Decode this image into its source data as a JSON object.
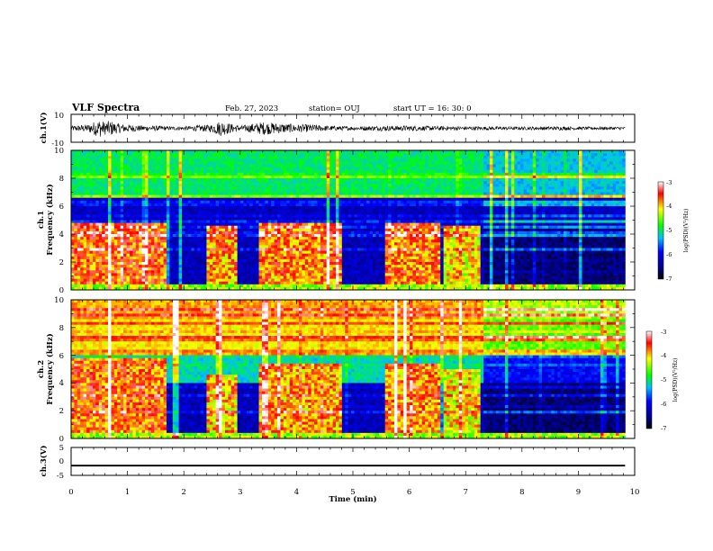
{
  "header": {
    "title": "VLF Spectra",
    "date": "Feb. 27, 2023",
    "station": "station= OUJ",
    "start": "start  UT =   16: 30: 0"
  },
  "chart_data": [
    {
      "type": "line",
      "title": "",
      "xlabel": "",
      "ylabel": "ch.1(V)",
      "xlim": [
        0,
        10
      ],
      "ylim": [
        -10,
        10
      ],
      "y_ticks": [
        "10",
        "-10"
      ],
      "series": [
        {
          "x": [
            0,
            0.3,
            0.5,
            0.6,
            0.7,
            0.8,
            1.0,
            1.3,
            1.5,
            1.7,
            2.0,
            2.5,
            2.65,
            2.8,
            3.0,
            3.4,
            3.7,
            4.0,
            4.3,
            4.5,
            5.0,
            5.5,
            6.0,
            7.0,
            8.0,
            8.7,
            9.0,
            9.83
          ],
          "envelope": [
            2,
            3,
            7,
            5,
            6,
            4,
            3,
            2,
            2,
            1.5,
            1.5,
            3,
            6,
            4,
            2,
            5,
            4,
            3,
            3,
            2,
            1.5,
            2,
            2,
            1.5,
            1.2,
            1.5,
            1.2,
            1.2
          ]
        }
      ]
    },
    {
      "type": "heatmap",
      "title": "",
      "xlabel": "",
      "ylabel_line1": "ch.1",
      "ylabel_line2": "Frequency (kHz)",
      "xlim": [
        0,
        10
      ],
      "ylim": [
        0,
        10
      ],
      "y_ticks": [
        "0",
        "2",
        "4",
        "6",
        "8",
        "10"
      ],
      "data_end_min": 9.83,
      "colorbar": {
        "label": "log(PSD)(V²/Hz)",
        "range": [
          -7,
          -3
        ],
        "ticks": [
          "-3",
          "-4",
          "-5",
          "-6",
          "-7"
        ],
        "colors": [
          "#000000",
          "#00008b",
          "#0000ff",
          "#00bfff",
          "#00ff00",
          "#ffff00",
          "#ff0000",
          "#ffffff"
        ]
      },
      "background_upper_kHz": 6.5,
      "background_lower_kHz": 4.8,
      "bursts": [
        {
          "t0": 0.0,
          "t1": 1.72,
          "f1": 4.8,
          "level": 0.82
        },
        {
          "t0": 2.42,
          "t1": 2.93,
          "f1": 4.6,
          "level": 0.78
        },
        {
          "t0": 3.32,
          "t1": 4.8,
          "f1": 4.8,
          "level": 0.8
        },
        {
          "t0": 5.55,
          "t1": 6.55,
          "f1": 4.8,
          "level": 0.8
        },
        {
          "t0": 6.6,
          "t1": 7.25,
          "f1": 4.5,
          "level": 0.72
        }
      ]
    },
    {
      "type": "heatmap",
      "title": "",
      "xlabel": "",
      "ylabel_line1": "ch.2",
      "ylabel_line2": "Frequency (kHz)",
      "xlim": [
        0,
        10
      ],
      "ylim": [
        0,
        10
      ],
      "y_ticks": [
        "0",
        "2",
        "4",
        "6",
        "8",
        "10"
      ],
      "data_end_min": 9.83,
      "colorbar": {
        "label": "log(PSD)(V²/Hz)",
        "range": [
          -7,
          -3
        ],
        "ticks": [
          "-3",
          "-4",
          "-5",
          "-6",
          "-7"
        ],
        "colors": [
          "#000000",
          "#00008b",
          "#0000ff",
          "#00bfff",
          "#00ff00",
          "#ffff00",
          "#ff0000",
          "#ffffff"
        ]
      },
      "background_upper_kHz": 6.0,
      "background_lower_kHz": 4.0,
      "bursts": [
        {
          "t0": 0.0,
          "t1": 1.72,
          "f1": 5.8,
          "level": 0.82
        },
        {
          "t0": 2.42,
          "t1": 2.93,
          "f1": 4.6,
          "level": 0.75
        },
        {
          "t0": 3.32,
          "t1": 4.8,
          "f1": 5.4,
          "level": 0.78
        },
        {
          "t0": 5.55,
          "t1": 6.55,
          "f1": 5.4,
          "level": 0.8
        },
        {
          "t0": 6.6,
          "t1": 7.25,
          "f1": 5.0,
          "level": 0.72
        }
      ]
    },
    {
      "type": "line",
      "title": "",
      "xlabel": "Time (min)",
      "ylabel": "ch.3(V)",
      "xlim": [
        0,
        10
      ],
      "ylim": [
        -5,
        5
      ],
      "y_ticks": [
        "5",
        "0",
        "-5"
      ],
      "x_ticks": [
        "0",
        "1",
        "2",
        "3",
        "4",
        "5",
        "6",
        "7",
        "8",
        "9",
        "10"
      ],
      "series": [
        {
          "x": [
            0,
            9.83
          ],
          "y": [
            -1.5,
            -1.5
          ],
          "band": [
            -1.8,
            -1.2
          ]
        }
      ]
    }
  ]
}
